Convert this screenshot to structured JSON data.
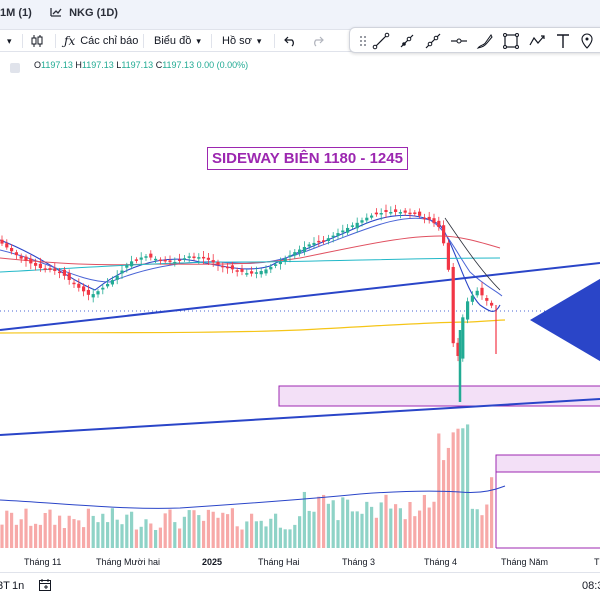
{
  "tabs": [
    {
      "label": "1M (1)"
    },
    {
      "label": "NKG (1D)"
    }
  ],
  "toolbar": {
    "indicators": "Các chỉ báo",
    "chart_type": "Biểu đồ",
    "profile": "Hồ sơ"
  },
  "legend": {
    "o_label": "O",
    "o": "1197.13",
    "h_label": "H",
    "h": "1197.13",
    "l_label": "L",
    "l": "1197.13",
    "c_label": "C",
    "c": "1197.13",
    "change": "0.00 (0.00%)"
  },
  "annotation": "SIDEWAY BIÊN 1180 - 1245",
  "time_axis": {
    "labels": [
      "Tháng 11",
      "Tháng Mười hai",
      "2025",
      "Tháng Hai",
      "Tháng 3",
      "Tháng 4",
      "Tháng Năm",
      "T"
    ]
  },
  "bottom": {
    "range_a": "3T",
    "range_b": "1n",
    "time": "08:3"
  },
  "colors": {
    "up": "#22ab94",
    "down": "#f23645",
    "trend": "#2a45c8",
    "zone": "#9c27b0",
    "zone_fill": "#f3e0f7"
  },
  "icons": [
    "candles-icon",
    "fx-icon",
    "undo-icon",
    "redo-icon",
    "trendline-icon",
    "ray-icon",
    "extended-line-icon",
    "horizontal-line-icon",
    "brush-icon",
    "rectangle-icon",
    "path-icon",
    "text-icon",
    "pin-icon",
    "calendar-icon"
  ]
}
